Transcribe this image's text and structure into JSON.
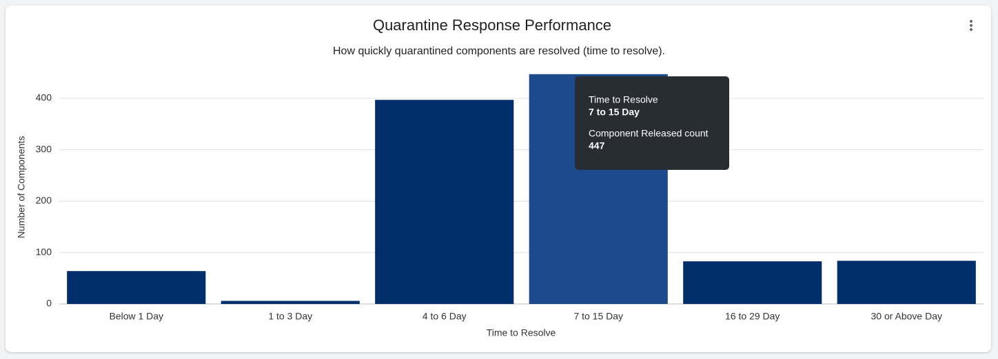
{
  "chart_data": {
    "type": "bar",
    "title": "Quarantine Response Performance",
    "subtitle": "How quickly quarantined components are resolved (time to resolve).",
    "x_label": "Time to Resolve",
    "y_label": "Number of Components",
    "categories": [
      "Below 1 Day",
      "1 to 3 Day",
      "4 to 6 Day",
      "7 to 15 Day",
      "16 to 29 Day",
      "30 or Above Day"
    ],
    "series": [
      {
        "name": "Component Released count",
        "color": "#022f6b",
        "values": [
          64,
          6,
          397,
          447,
          83,
          84
        ]
      }
    ],
    "hover_index": 3,
    "hover_color": "#1c4a8a",
    "ylim": [
      0,
      450
    ],
    "yticks": [
      0,
      100,
      200,
      300,
      400
    ],
    "grid": true
  }
}
